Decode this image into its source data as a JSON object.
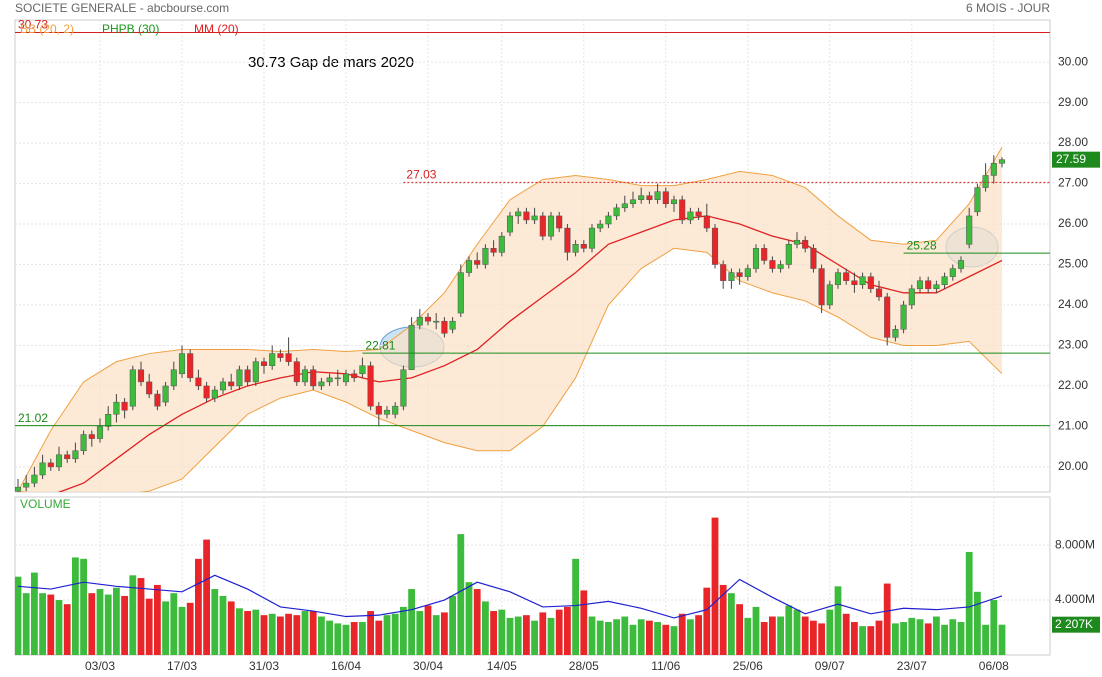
{
  "chart_data": {
    "type": "candlestick",
    "title": "SOCIETE GENERALE - abcbourse.com",
    "period": "6 MOIS - JOUR",
    "annotation": "30.73 Gap de mars 2020",
    "legend": [
      {
        "name": "BB (20, 2)",
        "color": "#f0a040"
      },
      {
        "name": "PHPB (30)",
        "color": "#1a9a1a"
      },
      {
        "name": "MM (20)",
        "color": "#e02020"
      }
    ],
    "up_color": "#3dbb3d",
    "down_color": "#e8262a",
    "ylim": [
      19.38,
      31.04
    ],
    "yticks": [
      {
        "value": 20,
        "label": "20.00"
      },
      {
        "value": 21,
        "label": "21.00"
      },
      {
        "value": 22,
        "label": "22.00"
      },
      {
        "value": 23,
        "label": "23.00"
      },
      {
        "value": 24,
        "label": "24.00"
      },
      {
        "value": 25,
        "label": "25.00"
      },
      {
        "value": 26,
        "label": "26.00"
      },
      {
        "value": 27,
        "label": "27.00"
      },
      {
        "value": 28,
        "label": "28.00"
      },
      {
        "value": 29,
        "label": "29.00"
      },
      {
        "value": 30,
        "label": "30.00"
      }
    ],
    "grid": true,
    "categories": [
      null,
      null,
      null,
      null,
      null,
      null,
      null,
      null,
      null,
      null,
      "03/03",
      null,
      null,
      null,
      null,
      null,
      null,
      null,
      null,
      null,
      "17/03",
      null,
      null,
      null,
      null,
      null,
      null,
      null,
      null,
      null,
      "31/03",
      null,
      null,
      null,
      null,
      null,
      null,
      null,
      null,
      null,
      "16/04",
      null,
      null,
      null,
      null,
      null,
      null,
      null,
      null,
      null,
      "30/04",
      null,
      null,
      null,
      null,
      null,
      null,
      null,
      null,
      "14/05",
      null,
      null,
      null,
      null,
      null,
      null,
      null,
      null,
      null,
      "28/05",
      null,
      null,
      null,
      null,
      null,
      null,
      null,
      null,
      null,
      "11/06",
      null,
      null,
      null,
      null,
      null,
      null,
      null,
      null,
      null,
      "25/06",
      null,
      null,
      null,
      null,
      null,
      null,
      null,
      null,
      null,
      "09/07",
      null,
      null,
      null,
      null,
      null,
      null,
      null,
      null,
      null,
      "23/07",
      null,
      null,
      null,
      null,
      null,
      null,
      null,
      null,
      null,
      "06/08",
      null
    ],
    "candles": [
      [
        19.4,
        19.7,
        19.3,
        19.5
      ],
      [
        19.5,
        19.8,
        19.4,
        19.6
      ],
      [
        19.6,
        20.0,
        19.5,
        19.8
      ],
      [
        19.8,
        20.3,
        19.7,
        20.1
      ],
      [
        20.1,
        20.2,
        19.9,
        20.0
      ],
      [
        20.0,
        20.5,
        19.9,
        20.3
      ],
      [
        20.3,
        20.4,
        20.1,
        20.2
      ],
      [
        20.2,
        20.6,
        20.1,
        20.4
      ],
      [
        20.4,
        20.9,
        20.3,
        20.8
      ],
      [
        20.8,
        20.9,
        20.5,
        20.7
      ],
      [
        20.7,
        21.2,
        20.6,
        21.0
      ],
      [
        21.0,
        21.5,
        20.9,
        21.3
      ],
      [
        21.3,
        21.8,
        21.1,
        21.6
      ],
      [
        21.6,
        21.7,
        21.2,
        21.4
      ],
      [
        21.5,
        22.5,
        21.4,
        22.4
      ],
      [
        22.4,
        22.6,
        22.0,
        22.1
      ],
      [
        22.1,
        22.3,
        21.7,
        21.8
      ],
      [
        21.8,
        21.9,
        21.4,
        21.5
      ],
      [
        21.6,
        22.1,
        21.5,
        22.0
      ],
      [
        22.0,
        22.6,
        21.9,
        22.4
      ],
      [
        22.3,
        23.0,
        22.2,
        22.8
      ],
      [
        22.8,
        22.9,
        22.1,
        22.2
      ],
      [
        22.2,
        22.4,
        21.9,
        22.0
      ],
      [
        22.0,
        22.1,
        21.6,
        21.7
      ],
      [
        21.7,
        22.0,
        21.6,
        21.9
      ],
      [
        21.9,
        22.2,
        21.8,
        22.1
      ],
      [
        22.1,
        22.3,
        21.9,
        22.0
      ],
      [
        22.0,
        22.5,
        21.9,
        22.4
      ],
      [
        22.4,
        22.5,
        22.0,
        22.1
      ],
      [
        22.1,
        22.7,
        22.0,
        22.6
      ],
      [
        22.6,
        22.7,
        22.3,
        22.5
      ],
      [
        22.5,
        23.0,
        22.4,
        22.8
      ],
      [
        22.8,
        22.9,
        22.6,
        22.7
      ],
      [
        22.8,
        23.2,
        22.5,
        22.6
      ],
      [
        22.6,
        22.7,
        22.0,
        22.1
      ],
      [
        22.1,
        22.5,
        22.0,
        22.4
      ],
      [
        22.4,
        22.5,
        21.9,
        22.0
      ],
      [
        22.0,
        22.2,
        21.9,
        22.1
      ],
      [
        22.1,
        22.3,
        22.0,
        22.2
      ],
      [
        22.2,
        22.4,
        22.0,
        22.2
      ],
      [
        22.1,
        22.4,
        22.0,
        22.3
      ],
      [
        22.3,
        22.4,
        22.1,
        22.2
      ],
      [
        22.3,
        22.7,
        22.2,
        22.5
      ],
      [
        22.5,
        22.6,
        21.4,
        21.5
      ],
      [
        21.5,
        21.6,
        21.0,
        21.3
      ],
      [
        21.3,
        21.5,
        21.2,
        21.4
      ],
      [
        21.3,
        21.6,
        21.2,
        21.5
      ],
      [
        21.5,
        22.5,
        21.4,
        22.4
      ],
      [
        22.4,
        23.7,
        22.4,
        23.5
      ],
      [
        23.5,
        23.9,
        23.4,
        23.7
      ],
      [
        23.7,
        23.8,
        23.5,
        23.6
      ],
      [
        23.6,
        23.8,
        23.4,
        23.6
      ],
      [
        23.6,
        23.7,
        23.2,
        23.3
      ],
      [
        23.4,
        23.7,
        23.3,
        23.6
      ],
      [
        23.8,
        25.0,
        23.7,
        24.8
      ],
      [
        24.8,
        25.2,
        24.7,
        25.1
      ],
      [
        25.1,
        25.3,
        24.9,
        25.0
      ],
      [
        25.0,
        25.5,
        24.9,
        25.4
      ],
      [
        25.4,
        25.6,
        25.2,
        25.3
      ],
      [
        25.3,
        25.8,
        25.2,
        25.7
      ],
      [
        25.8,
        26.3,
        25.7,
        26.2
      ],
      [
        26.2,
        26.4,
        26.0,
        26.3
      ],
      [
        26.3,
        26.4,
        26.0,
        26.1
      ],
      [
        26.1,
        26.4,
        26.0,
        26.2
      ],
      [
        26.2,
        26.3,
        25.6,
        25.7
      ],
      [
        25.7,
        26.3,
        25.6,
        26.2
      ],
      [
        26.2,
        26.3,
        25.8,
        25.9
      ],
      [
        25.9,
        26.0,
        25.1,
        25.3
      ],
      [
        25.3,
        25.6,
        25.2,
        25.5
      ],
      [
        25.5,
        25.6,
        25.3,
        25.4
      ],
      [
        25.4,
        26.0,
        25.3,
        25.9
      ],
      [
        25.9,
        26.1,
        25.8,
        26.0
      ],
      [
        26.0,
        26.3,
        25.9,
        26.2
      ],
      [
        26.2,
        26.5,
        26.1,
        26.4
      ],
      [
        26.4,
        26.7,
        26.3,
        26.5
      ],
      [
        26.5,
        26.8,
        26.4,
        26.6
      ],
      [
        26.6,
        26.9,
        26.5,
        26.7
      ],
      [
        26.7,
        26.8,
        26.5,
        26.6
      ],
      [
        26.6,
        27.0,
        26.5,
        26.8
      ],
      [
        26.8,
        26.9,
        26.4,
        26.5
      ],
      [
        26.5,
        26.7,
        26.3,
        26.6
      ],
      [
        26.6,
        26.7,
        26.0,
        26.1
      ],
      [
        26.1,
        26.4,
        26.0,
        26.3
      ],
      [
        26.3,
        26.4,
        26.1,
        26.2
      ],
      [
        26.2,
        26.5,
        25.8,
        25.9
      ],
      [
        25.9,
        26.0,
        24.9,
        25.0
      ],
      [
        25.0,
        25.1,
        24.4,
        24.6
      ],
      [
        24.6,
        24.9,
        24.4,
        24.8
      ],
      [
        24.8,
        24.9,
        24.5,
        24.7
      ],
      [
        24.7,
        25.0,
        24.6,
        24.9
      ],
      [
        24.9,
        25.5,
        24.8,
        25.4
      ],
      [
        25.4,
        25.5,
        25.0,
        25.1
      ],
      [
        25.1,
        25.2,
        24.8,
        24.9
      ],
      [
        24.9,
        25.1,
        24.8,
        25.0
      ],
      [
        25.0,
        25.6,
        24.9,
        25.5
      ],
      [
        25.5,
        25.8,
        25.4,
        25.6
      ],
      [
        25.6,
        25.7,
        25.3,
        25.4
      ],
      [
        25.4,
        25.5,
        24.8,
        24.9
      ],
      [
        24.9,
        25.0,
        23.8,
        24.0
      ],
      [
        24.0,
        24.6,
        23.9,
        24.5
      ],
      [
        24.5,
        24.9,
        24.4,
        24.8
      ],
      [
        24.8,
        24.9,
        24.5,
        24.6
      ],
      [
        24.6,
        24.8,
        24.3,
        24.5
      ],
      [
        24.5,
        24.8,
        24.4,
        24.7
      ],
      [
        24.7,
        24.8,
        24.3,
        24.4
      ],
      [
        24.4,
        24.6,
        24.1,
        24.2
      ],
      [
        24.2,
        24.3,
        23.0,
        23.2
      ],
      [
        23.2,
        23.5,
        23.1,
        23.4
      ],
      [
        23.4,
        24.1,
        23.3,
        24.0
      ],
      [
        24.0,
        24.5,
        23.9,
        24.4
      ],
      [
        24.4,
        24.7,
        24.3,
        24.6
      ],
      [
        24.6,
        24.7,
        24.3,
        24.4
      ],
      [
        24.4,
        24.6,
        24.3,
        24.5
      ],
      [
        24.5,
        24.8,
        24.4,
        24.7
      ],
      [
        24.7,
        25.0,
        24.6,
        24.9
      ],
      [
        24.9,
        25.2,
        24.8,
        25.1
      ],
      [
        25.5,
        26.4,
        25.4,
        26.2
      ],
      [
        26.3,
        27.0,
        26.2,
        26.9
      ],
      [
        26.9,
        27.5,
        26.8,
        27.2
      ],
      [
        27.2,
        27.7,
        27.0,
        27.5
      ],
      [
        27.5,
        27.65,
        27.4,
        27.59
      ]
    ],
    "bands": {
      "x": [
        0,
        4,
        8,
        12,
        16,
        20,
        24,
        28,
        32,
        36,
        40,
        44,
        48,
        52,
        56,
        60,
        64,
        68,
        72,
        76,
        80,
        84,
        88,
        92,
        96,
        100,
        104,
        108,
        112,
        116,
        120
      ],
      "upper": [
        19.4,
        20.9,
        22.1,
        22.6,
        22.8,
        22.9,
        22.9,
        22.9,
        22.85,
        22.9,
        22.85,
        22.9,
        23.5,
        24.3,
        25.5,
        26.6,
        27.1,
        27.2,
        27.1,
        26.95,
        26.95,
        27.1,
        27.3,
        27.2,
        26.9,
        26.2,
        25.6,
        25.5,
        25.6,
        26.5,
        27.9
      ],
      "lower": [
        19.4,
        19.3,
        19.3,
        19.3,
        19.4,
        19.7,
        20.5,
        21.3,
        21.7,
        21.9,
        21.6,
        21.2,
        20.9,
        20.6,
        20.4,
        20.4,
        21.0,
        22.2,
        24.0,
        24.9,
        25.4,
        25.3,
        24.6,
        24.3,
        24.1,
        23.7,
        23.2,
        23.0,
        23.0,
        23.1,
        22.3
      ],
      "mm": [
        19.0,
        19.3,
        19.6,
        20.2,
        20.8,
        21.3,
        21.7,
        22.0,
        22.2,
        22.35,
        22.3,
        22.1,
        22.2,
        22.5,
        22.9,
        23.6,
        24.2,
        24.8,
        25.5,
        25.8,
        26.1,
        26.2,
        26.0,
        25.7,
        25.5,
        25.0,
        24.5,
        24.3,
        24.3,
        24.7,
        25.1
      ]
    },
    "levels": [
      {
        "value": 30.73,
        "color": "#d42020",
        "from": 0
      },
      {
        "value": 27.03,
        "color": "#d42020",
        "from": 47,
        "dashed": true
      },
      {
        "value": 25.28,
        "color": "#1a8a1a",
        "from": 108
      },
      {
        "value": 22.81,
        "color": "#1a8a1a",
        "from": 42
      },
      {
        "value": 21.02,
        "color": "#1a8a1a",
        "from": 0
      }
    ],
    "volume": {
      "title": "VOLUME",
      "ylim": [
        0,
        11.5
      ],
      "yticks": [
        {
          "value": 4,
          "label": "4.000M"
        },
        {
          "value": 8,
          "label": "8.000M"
        }
      ],
      "last_label": "2 207K",
      "values": [
        5.7,
        4.5,
        6.0,
        4.5,
        4.4,
        4.0,
        3.7,
        7.1,
        7.0,
        4.5,
        4.8,
        4.4,
        4.9,
        4.3,
        5.8,
        5.6,
        4.1,
        5.1,
        3.9,
        4.5,
        3.5,
        3.8,
        7.0,
        8.4,
        4.8,
        4.3,
        3.9,
        3.4,
        3.2,
        3.3,
        2.9,
        3.0,
        2.8,
        3.0,
        2.9,
        3.2,
        3.2,
        2.8,
        2.5,
        2.3,
        2.2,
        2.4,
        2.4,
        3.2,
        2.5,
        2.9,
        3.0,
        3.5,
        4.8,
        3.2,
        3.6,
        2.9,
        3.1,
        4.3,
        8.8,
        5.3,
        4.8,
        3.9,
        3.2,
        3.3,
        2.7,
        2.8,
        2.9,
        2.5,
        3.1,
        2.7,
        3.3,
        3.5,
        7.0,
        4.7,
        2.8,
        2.5,
        2.4,
        2.6,
        2.8,
        2.2,
        2.6,
        2.5,
        2.4,
        2.2,
        2.1,
        3.0,
        2.6,
        2.9,
        4.9,
        10.0,
        5.1,
        4.5,
        3.7,
        2.7,
        3.5,
        2.4,
        2.8,
        2.8,
        3.6,
        3.3,
        2.8,
        2.5,
        2.3,
        3.3,
        5.0,
        3.0,
        2.4,
        2.1,
        2.1,
        2.5,
        5.2,
        2.3,
        2.4,
        2.7,
        2.6,
        2.3,
        2.8,
        2.2,
        2.6,
        2.4,
        7.5,
        4.6,
        2.2,
        4.0,
        2.207
      ],
      "ma_x": [
        0,
        4,
        8,
        12,
        16,
        20,
        24,
        28,
        32,
        36,
        40,
        44,
        48,
        52,
        56,
        60,
        64,
        68,
        72,
        76,
        80,
        84,
        88,
        92,
        96,
        100,
        104,
        108,
        112,
        116,
        120
      ],
      "ma": [
        5.0,
        4.8,
        5.3,
        5.0,
        4.8,
        4.6,
        5.8,
        4.8,
        3.5,
        3.2,
        2.8,
        2.9,
        3.3,
        4.0,
        5.3,
        4.6,
        3.5,
        3.6,
        3.9,
        3.4,
        2.7,
        3.3,
        5.5,
        4.2,
        3.0,
        3.7,
        3.0,
        3.4,
        3.3,
        3.5,
        4.3
      ],
      "ma_color": "#2020d0"
    }
  }
}
